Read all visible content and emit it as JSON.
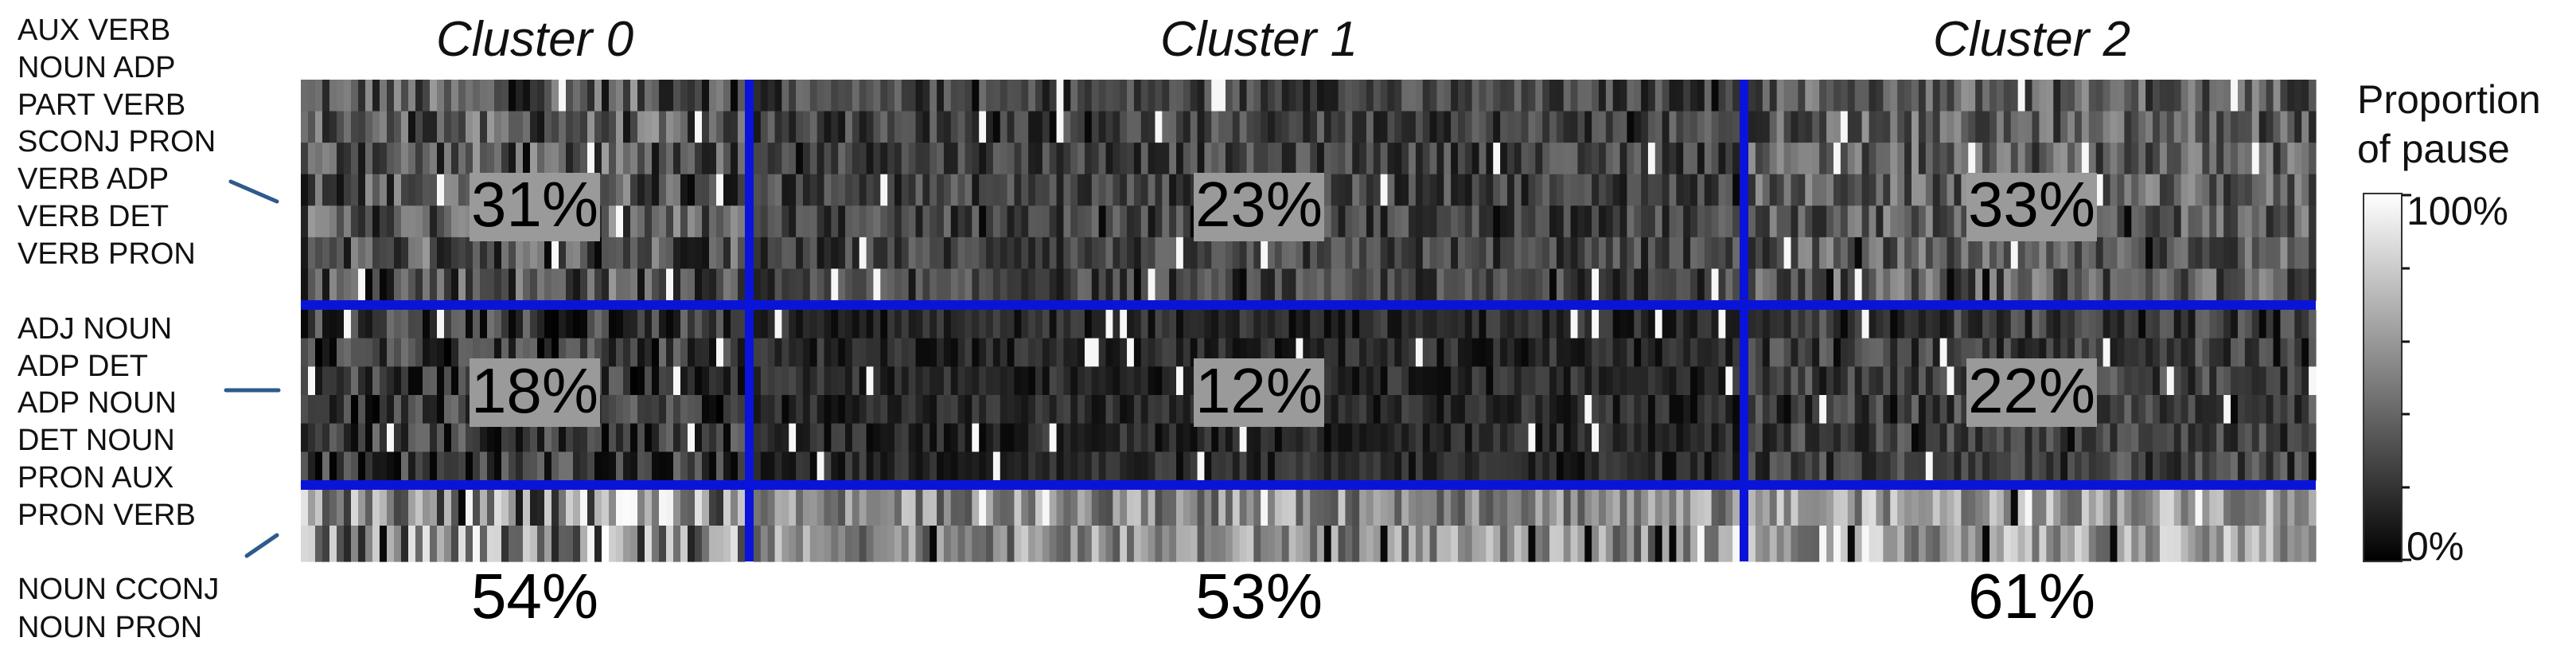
{
  "chart_data": {
    "type": "heatmap",
    "clusters": [
      {
        "title": "Cluster 0"
      },
      {
        "title": "Cluster 1"
      },
      {
        "title": "Cluster 2"
      }
    ],
    "row_groups": [
      {
        "labels": [
          "AUX VERB",
          "NOUN ADP",
          "PART VERB",
          "SCONJ PRON",
          "VERB ADP",
          "VERB DET",
          "VERB PRON"
        ],
        "values": [
          "31%",
          "23%",
          "33%"
        ]
      },
      {
        "labels": [
          "ADJ NOUN",
          "ADP DET",
          "ADP NOUN",
          "DET NOUN",
          "PRON AUX",
          "PRON VERB"
        ],
        "values": [
          "18%",
          "12%",
          "22%"
        ]
      },
      {
        "labels": [
          "NOUN CCONJ",
          "NOUN PRON"
        ],
        "values": [
          "54%",
          "53%",
          "61%"
        ]
      }
    ],
    "colorbar": {
      "title_lines": [
        "Proportion",
        "of pause"
      ],
      "max_label": "100%",
      "min_label": "0%",
      "range": [
        0,
        100
      ]
    },
    "colors": {
      "divider": "#0a14d8",
      "connector": "#2e5a8c",
      "value_box": "#9a9a9a"
    }
  }
}
